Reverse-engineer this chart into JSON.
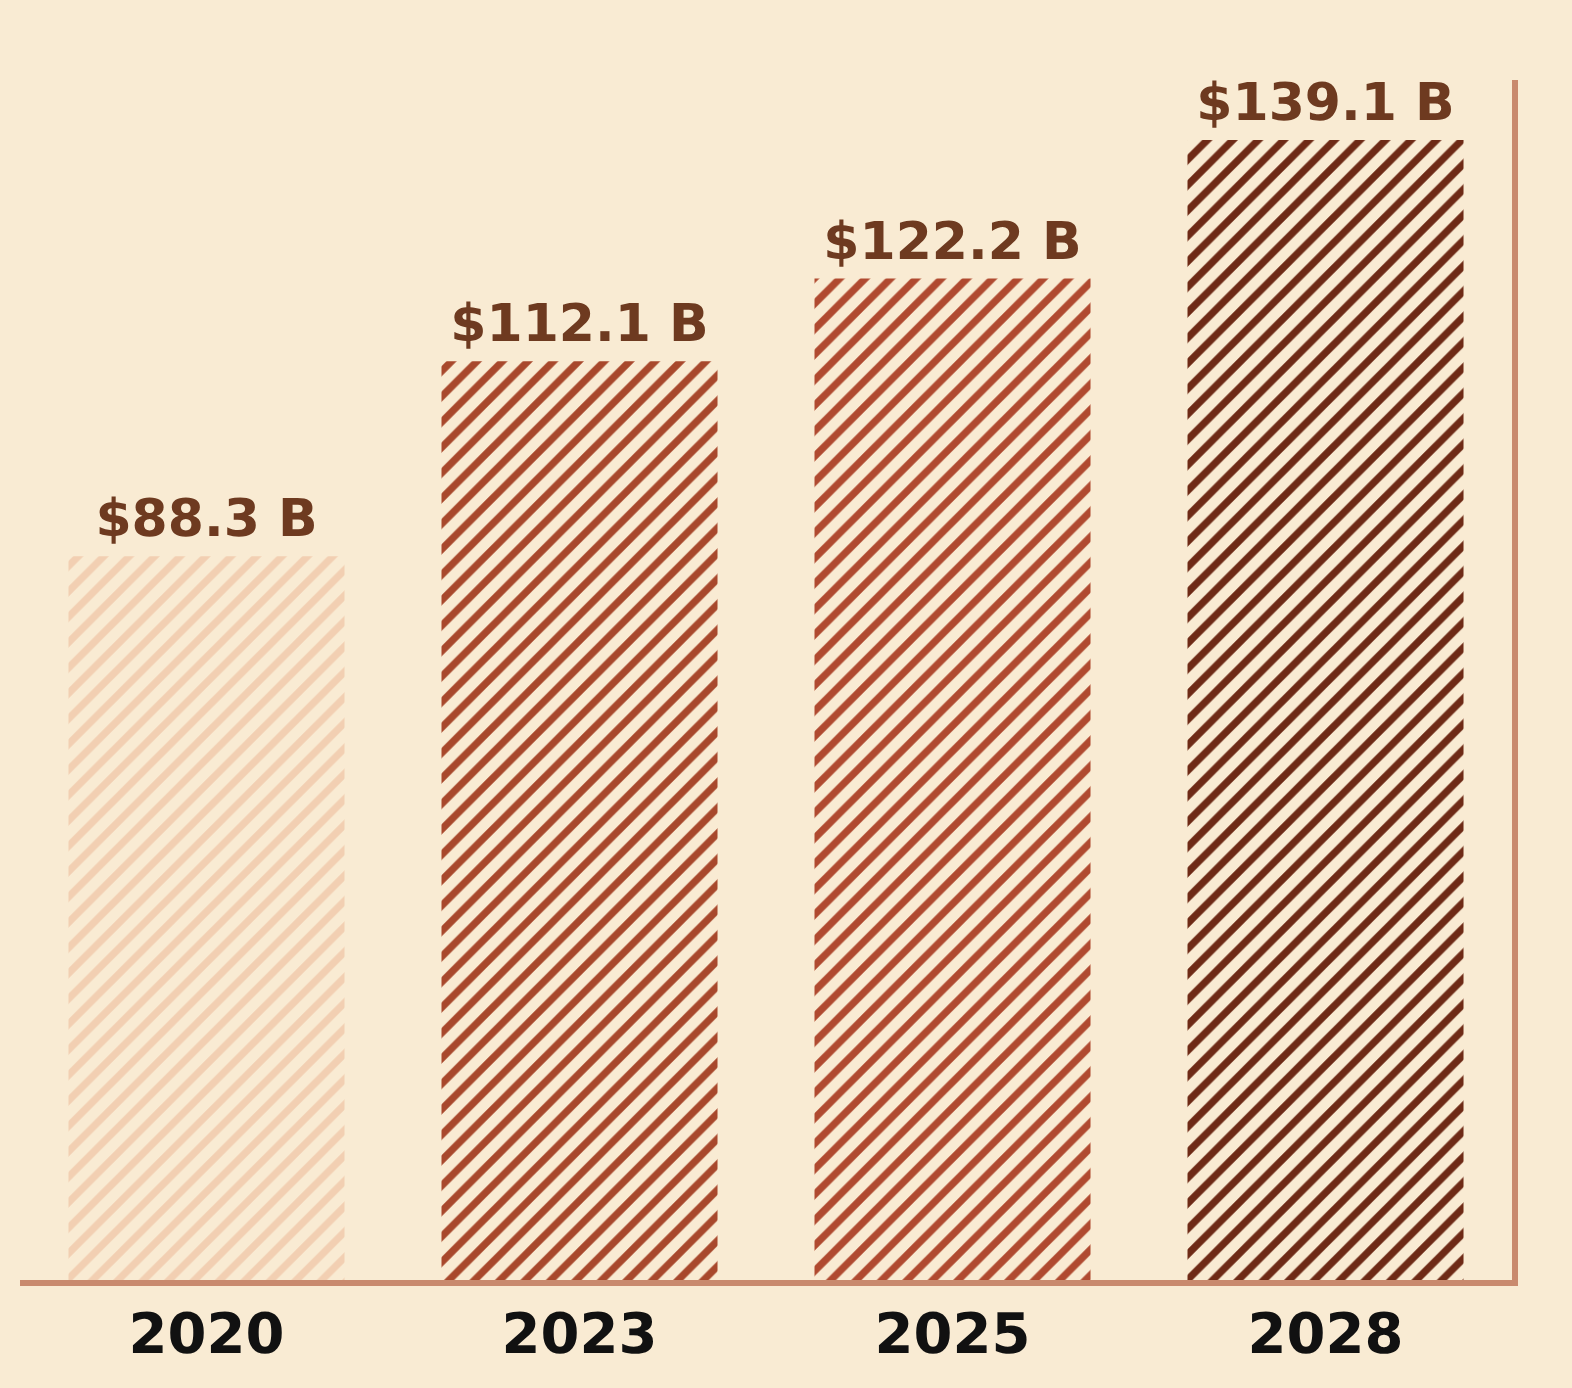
{
  "chart_data": {
    "type": "bar",
    "categories": [
      "2020",
      "2023",
      "2025",
      "2028"
    ],
    "values": [
      88.3,
      112.1,
      122.2,
      139.1
    ],
    "value_labels": [
      "$88.3 B",
      "$112.1 B",
      "$122.2 B",
      "$139.1 B"
    ],
    "colors": [
      "#f2cfb2",
      "#a8482c",
      "#b04a30",
      "#6e2a16"
    ],
    "grid": false,
    "legend": false,
    "tick_labels": "x"
  }
}
